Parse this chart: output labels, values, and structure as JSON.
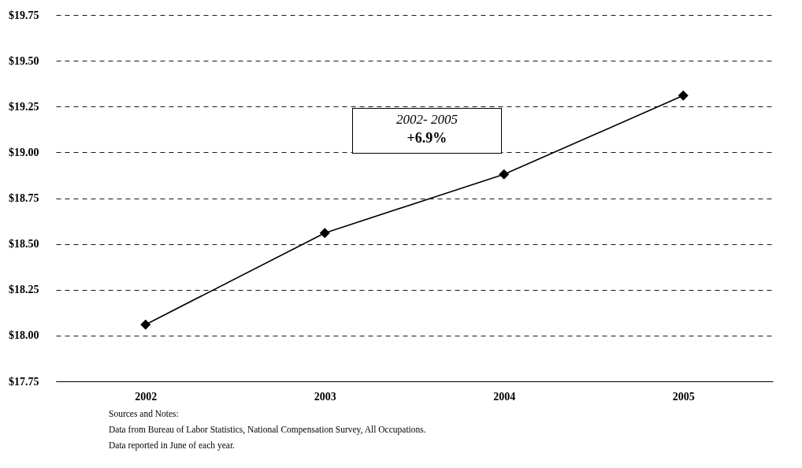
{
  "chart_data": {
    "type": "line",
    "categories": [
      "2002",
      "2003",
      "2004",
      "2005"
    ],
    "series": [
      {
        "color": "#000000",
        "values": [
          18.06,
          18.56,
          18.88,
          19.31
        ]
      }
    ],
    "ylim": [
      17.75,
      19.75
    ],
    "yticks": [
      {
        "value": 17.75,
        "label": "$17.75"
      },
      {
        "value": 18.0,
        "label": "$18.00"
      },
      {
        "value": 18.25,
        "label": "$18.25"
      },
      {
        "value": 18.5,
        "label": "$18.50"
      },
      {
        "value": 18.75,
        "label": "$18.75"
      },
      {
        "value": 19.0,
        "label": "$19.00"
      },
      {
        "value": 19.25,
        "label": "$19.25"
      },
      {
        "value": 19.5,
        "label": "$19.50"
      },
      {
        "value": 19.75,
        "label": "$19.75"
      }
    ],
    "grid": "y",
    "marker": "diamond",
    "line_style": "solid",
    "legend": false,
    "annotations": [
      "2002- 2005",
      "+6.9%",
      "Sources and Notes:",
      "Data from Bureau of Labor Statistics, National Compensation Survey, All Occupations.",
      "Data reported in June of each year."
    ]
  }
}
